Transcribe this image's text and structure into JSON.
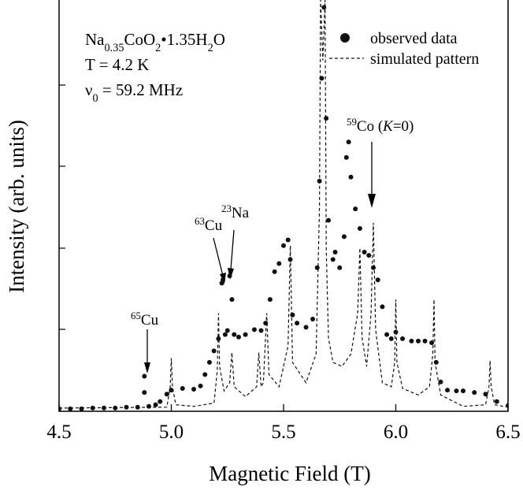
{
  "chart_data": {
    "type": "scatter-line",
    "x_label": "Magnetic Field (T)",
    "y_label": "Intensity (arb. units)",
    "xlim": [
      4.5,
      6.5
    ],
    "ylim": [
      0,
      5.04
    ],
    "xticks": [
      4.5,
      {
        "value": 5,
        "label": "5.0"
      },
      5.5,
      {
        "value": 6,
        "label": "6.0"
      },
      6.5
    ],
    "sample_lines": [
      [
        "Na",
        "0.35",
        "CoO",
        "2",
        "•1.35H",
        "2",
        "O"
      ],
      [
        "T  = 4.2 K"
      ],
      [
        "ν",
        "0",
        " = 59.2 MHz"
      ]
    ],
    "annotations": [
      [
        "65",
        "Cu"
      ],
      [
        "63",
        "Cu"
      ],
      [
        "23",
        "Na"
      ],
      [
        "59",
        "Co (",
        "K",
        "=0)"
      ]
    ],
    "series": [
      {
        "name": "observed data",
        "style": "dots",
        "color": "#111111",
        "x": [
          4.5,
          4.55,
          4.6,
          4.65,
          4.7,
          4.75,
          4.8,
          4.85,
          4.88,
          4.88,
          4.9,
          4.93,
          4.95,
          4.98,
          5.0,
          5.05,
          5.1,
          5.13,
          5.15,
          5.17,
          5.19,
          5.21,
          5.225,
          5.23,
          5.24,
          5.25,
          5.26,
          5.27,
          5.28,
          5.3,
          5.33,
          5.37,
          5.4,
          5.42,
          5.44,
          5.46,
          5.48,
          5.5,
          5.52,
          5.53,
          5.54,
          5.56,
          5.6,
          5.63,
          5.65,
          5.66,
          5.67,
          5.68,
          5.69,
          5.7,
          5.72,
          5.73,
          5.75,
          5.77,
          5.78,
          5.79,
          5.8,
          5.82,
          5.84,
          5.86,
          5.88,
          5.9,
          5.92,
          5.94,
          5.96,
          5.98,
          6.0,
          6.03,
          6.07,
          6.1,
          6.13,
          6.16,
          6.18,
          6.2,
          6.23,
          6.27,
          6.3,
          6.35,
          6.4,
          6.45,
          6.5
        ],
        "values": [
          0.03,
          0.03,
          0.03,
          0.04,
          0.04,
          0.04,
          0.05,
          0.05,
          0.43,
          0.23,
          0.06,
          0.08,
          0.12,
          0.21,
          0.26,
          0.28,
          0.27,
          0.31,
          0.45,
          0.6,
          0.74,
          0.89,
          1.57,
          1.61,
          0.94,
          0.99,
          1.66,
          1.37,
          0.94,
          0.91,
          0.94,
          1.0,
          0.99,
          1.08,
          1.37,
          1.71,
          1.81,
          2.03,
          2.1,
          1.86,
          1.18,
          1.08,
          1.03,
          1.13,
          1.76,
          2.82,
          4.08,
          4.95,
          3.59,
          2.34,
          1.86,
          1.95,
          1.76,
          2.14,
          3.11,
          3.3,
          2.87,
          2.48,
          2.24,
          1.95,
          1.91,
          1.76,
          1.61,
          1.28,
          0.94,
          0.89,
          0.97,
          0.89,
          0.86,
          0.86,
          0.86,
          0.84,
          0.6,
          0.36,
          0.26,
          0.25,
          0.25,
          0.23,
          0.21,
          0.12,
          0.07
        ]
      },
      {
        "name": "simulated pattern",
        "style": "dashed",
        "color": "#111111",
        "x": [
          4.5,
          4.98,
          4.995,
          5.0,
          5.005,
          5.02,
          5.1,
          5.19,
          5.205,
          5.21,
          5.215,
          5.235,
          5.26,
          5.27,
          5.28,
          5.33,
          5.38,
          5.39,
          5.4,
          5.41,
          5.425,
          5.435,
          5.48,
          5.52,
          5.53,
          5.54,
          5.6,
          5.645,
          5.66,
          5.665,
          5.675,
          5.685,
          5.69,
          5.7,
          5.72,
          5.76,
          5.8,
          5.83,
          5.84,
          5.85,
          5.87,
          5.89,
          5.9,
          5.91,
          5.94,
          5.98,
          5.995,
          6.0,
          6.005,
          6.03,
          6.1,
          6.15,
          6.165,
          6.17,
          6.175,
          6.2,
          6.3,
          6.4,
          6.415,
          6.42,
          6.425,
          6.44,
          6.5
        ],
        "values": [
          0.04,
          0.05,
          0.3,
          0.65,
          0.3,
          0.08,
          0.06,
          0.1,
          0.5,
          1.2,
          0.55,
          0.25,
          0.35,
          0.72,
          0.3,
          0.18,
          0.3,
          0.72,
          0.3,
          0.35,
          1.2,
          0.45,
          0.3,
          0.8,
          2.03,
          0.6,
          0.35,
          0.7,
          2.5,
          5.04,
          4.3,
          5.04,
          2.0,
          0.9,
          0.6,
          0.55,
          0.7,
          1.2,
          2.0,
          0.9,
          0.55,
          1.2,
          2.31,
          1.0,
          0.35,
          0.3,
          0.6,
          1.37,
          0.6,
          0.28,
          0.2,
          0.3,
          0.7,
          1.37,
          0.6,
          0.2,
          0.06,
          0.08,
          0.3,
          0.62,
          0.3,
          0.08,
          0.05
        ]
      }
    ]
  }
}
